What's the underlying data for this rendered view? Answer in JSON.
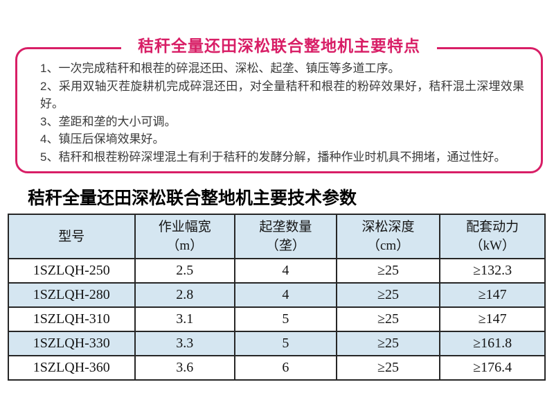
{
  "page": {
    "background": "#ffffff",
    "accent_color": "#d81e66",
    "stripe_color": "#d5e6f1"
  },
  "features_box": {
    "title": "秸秆全量还田深松联合整地机主要特点",
    "items": [
      "1、一次完成秸秆和根茬的碎混还田、深松、起垄、镇压等多道工序。",
      "2、采用双轴灭茬旋耕机完成碎混还田，对全量秸秆和根茬的粉碎效果好，秸秆混土深埋效果好。",
      "3、垄距和垄的大小可调。",
      "4、镇压后保墒效果好。",
      "5、秸秆和根茬粉碎深埋混土有利于秸秆的发酵分解，播种作业时机具不拥堵，通过性好。"
    ]
  },
  "spec_table": {
    "title": "秸秆全量还田深松联合整地机主要技术参数",
    "columns": [
      {
        "label": "型号",
        "unit": ""
      },
      {
        "label": "作业幅宽",
        "unit": "（m）"
      },
      {
        "label": "起垄数量",
        "unit": "（垄）"
      },
      {
        "label": "深松深度",
        "unit": "（cm）"
      },
      {
        "label": "配套动力",
        "unit": "（kW）"
      }
    ],
    "rows": [
      [
        "1SZLQH-250",
        "2.5",
        "4",
        "≥25",
        "≥132.3"
      ],
      [
        "1SZLQH-280",
        "2.8",
        "4",
        "≥25",
        "≥147"
      ],
      [
        "1SZLQH-310",
        "3.1",
        "5",
        "≥25",
        "≥147"
      ],
      [
        "1SZLQH-330",
        "3.3",
        "5",
        "≥25",
        "≥161.8"
      ],
      [
        "1SZLQH-360",
        "3.6",
        "6",
        "≥25",
        "≥176.4"
      ]
    ]
  }
}
